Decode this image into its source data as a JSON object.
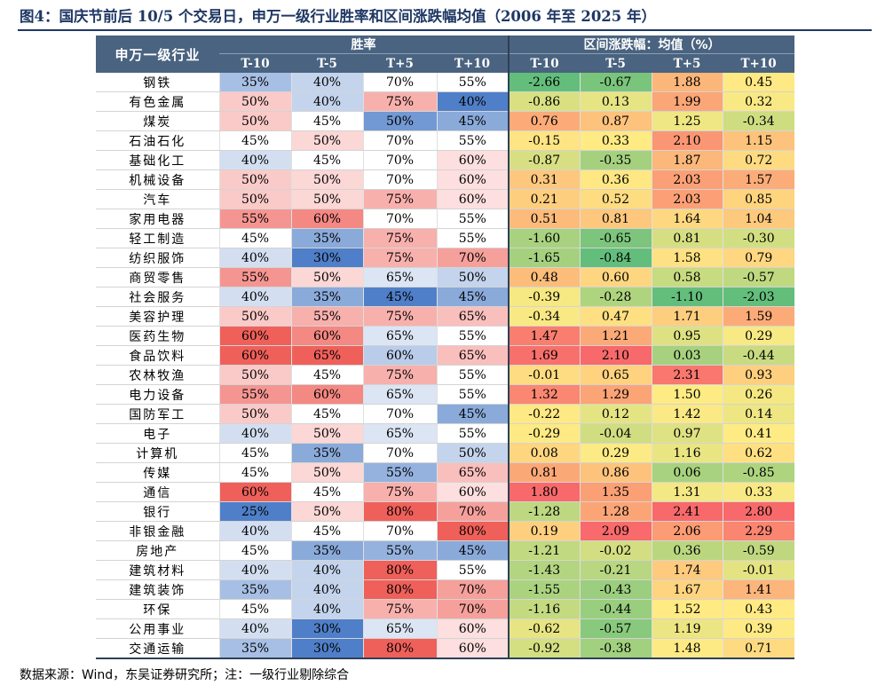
{
  "title": "图4：国庆节前后 10/5 个交易日，申万一级行业胜率和区间涨跌幅均值（2006 年至 2025 年）",
  "table": {
    "industry_header": "申万一级行业",
    "group_headers": [
      "胜率",
      "区间涨跌幅：均值（%）"
    ],
    "sub_headers": [
      "T-10",
      "T-5",
      "T+5",
      "T+10",
      "T-10",
      "T-5",
      "T+5",
      "T+10"
    ],
    "rows": [
      {
        "industry": "钢铁",
        "win": [
          "35%",
          "40%",
          "70%",
          "55%"
        ],
        "ret": [
          "-2.66",
          "-0.67",
          "1.88",
          "0.45"
        ]
      },
      {
        "industry": "有色金属",
        "win": [
          "50%",
          "40%",
          "75%",
          "40%"
        ],
        "ret": [
          "-0.86",
          "0.13",
          "1.99",
          "0.32"
        ]
      },
      {
        "industry": "煤炭",
        "win": [
          "50%",
          "45%",
          "50%",
          "45%"
        ],
        "ret": [
          "0.76",
          "0.87",
          "1.25",
          "-0.34"
        ]
      },
      {
        "industry": "石油石化",
        "win": [
          "45%",
          "50%",
          "70%",
          "55%"
        ],
        "ret": [
          "-0.15",
          "0.33",
          "2.10",
          "1.15"
        ]
      },
      {
        "industry": "基础化工",
        "win": [
          "40%",
          "45%",
          "70%",
          "60%"
        ],
        "ret": [
          "-0.87",
          "-0.35",
          "1.87",
          "0.72"
        ]
      },
      {
        "industry": "机械设备",
        "win": [
          "50%",
          "50%",
          "70%",
          "60%"
        ],
        "ret": [
          "0.31",
          "0.36",
          "2.03",
          "1.57"
        ]
      },
      {
        "industry": "汽车",
        "win": [
          "50%",
          "50%",
          "75%",
          "60%"
        ],
        "ret": [
          "0.21",
          "0.52",
          "2.03",
          "0.85"
        ]
      },
      {
        "industry": "家用电器",
        "win": [
          "55%",
          "60%",
          "70%",
          "55%"
        ],
        "ret": [
          "0.51",
          "0.81",
          "1.64",
          "1.04"
        ]
      },
      {
        "industry": "轻工制造",
        "win": [
          "45%",
          "35%",
          "75%",
          "55%"
        ],
        "ret": [
          "-1.60",
          "-0.65",
          "0.81",
          "-0.30"
        ]
      },
      {
        "industry": "纺织服饰",
        "win": [
          "40%",
          "30%",
          "75%",
          "70%"
        ],
        "ret": [
          "-1.65",
          "-0.84",
          "1.58",
          "0.79"
        ]
      },
      {
        "industry": "商贸零售",
        "win": [
          "55%",
          "50%",
          "65%",
          "50%"
        ],
        "ret": [
          "0.48",
          "0.60",
          "0.58",
          "-0.57"
        ]
      },
      {
        "industry": "社会服务",
        "win": [
          "40%",
          "35%",
          "45%",
          "45%"
        ],
        "ret": [
          "-0.39",
          "-0.28",
          "-1.10",
          "-2.03"
        ]
      },
      {
        "industry": "美容护理",
        "win": [
          "50%",
          "55%",
          "75%",
          "65%"
        ],
        "ret": [
          "-0.34",
          "0.47",
          "1.71",
          "1.59"
        ]
      },
      {
        "industry": "医药生物",
        "win": [
          "60%",
          "60%",
          "65%",
          "55%"
        ],
        "ret": [
          "1.47",
          "1.21",
          "0.95",
          "0.29"
        ]
      },
      {
        "industry": "食品饮料",
        "win": [
          "60%",
          "65%",
          "60%",
          "65%"
        ],
        "ret": [
          "1.69",
          "2.10",
          "0.03",
          "-0.44"
        ]
      },
      {
        "industry": "农林牧渔",
        "win": [
          "50%",
          "45%",
          "75%",
          "55%"
        ],
        "ret": [
          "-0.01",
          "0.65",
          "2.31",
          "0.93"
        ]
      },
      {
        "industry": "电力设备",
        "win": [
          "55%",
          "60%",
          "65%",
          "55%"
        ],
        "ret": [
          "1.32",
          "1.29",
          "1.50",
          "0.26"
        ]
      },
      {
        "industry": "国防军工",
        "win": [
          "50%",
          "45%",
          "70%",
          "45%"
        ],
        "ret": [
          "-0.22",
          "0.12",
          "1.42",
          "0.14"
        ]
      },
      {
        "industry": "电子",
        "win": [
          "40%",
          "50%",
          "65%",
          "55%"
        ],
        "ret": [
          "-0.29",
          "-0.04",
          "0.97",
          "0.41"
        ]
      },
      {
        "industry": "计算机",
        "win": [
          "45%",
          "35%",
          "70%",
          "50%"
        ],
        "ret": [
          "0.08",
          "0.29",
          "1.16",
          "0.62"
        ]
      },
      {
        "industry": "传媒",
        "win": [
          "45%",
          "50%",
          "55%",
          "65%"
        ],
        "ret": [
          "0.81",
          "0.86",
          "0.06",
          "-0.85"
        ]
      },
      {
        "industry": "通信",
        "win": [
          "60%",
          "45%",
          "75%",
          "60%"
        ],
        "ret": [
          "1.80",
          "1.35",
          "1.31",
          "0.33"
        ]
      },
      {
        "industry": "银行",
        "win": [
          "25%",
          "50%",
          "80%",
          "70%"
        ],
        "ret": [
          "-1.28",
          "1.28",
          "2.41",
          "2.80"
        ]
      },
      {
        "industry": "非银金融",
        "win": [
          "40%",
          "45%",
          "70%",
          "80%"
        ],
        "ret": [
          "0.19",
          "2.09",
          "2.06",
          "2.29"
        ]
      },
      {
        "industry": "房地产",
        "win": [
          "45%",
          "35%",
          "55%",
          "45%"
        ],
        "ret": [
          "-1.21",
          "-0.02",
          "0.36",
          "-0.59"
        ]
      },
      {
        "industry": "建筑材料",
        "win": [
          "40%",
          "40%",
          "80%",
          "55%"
        ],
        "ret": [
          "-1.43",
          "-0.21",
          "1.74",
          "-0.01"
        ]
      },
      {
        "industry": "建筑装饰",
        "win": [
          "35%",
          "40%",
          "80%",
          "70%"
        ],
        "ret": [
          "-1.55",
          "-0.43",
          "1.67",
          "1.41"
        ]
      },
      {
        "industry": "环保",
        "win": [
          "45%",
          "40%",
          "75%",
          "70%"
        ],
        "ret": [
          "-1.16",
          "-0.44",
          "1.52",
          "0.43"
        ]
      },
      {
        "industry": "公用事业",
        "win": [
          "40%",
          "30%",
          "65%",
          "60%"
        ],
        "ret": [
          "-0.62",
          "-0.57",
          "1.19",
          "0.39"
        ]
      },
      {
        "industry": "交通运输",
        "win": [
          "35%",
          "30%",
          "80%",
          "60%"
        ],
        "ret": [
          "-0.92",
          "-0.38",
          "1.48",
          "0.71"
        ]
      }
    ]
  },
  "colors": {
    "header_bg": "#4a6380",
    "title": "#1f3864",
    "win_low": "#4f7fc8",
    "win_mid": "#ffffff",
    "win_high": "#f0605a",
    "ret_low": "#63be7b",
    "ret_mid": "#ffeb84",
    "ret_high": "#f8696b"
  },
  "source": "数据来源：Wind，东吴证券研究所；注：一级行业剔除综合"
}
